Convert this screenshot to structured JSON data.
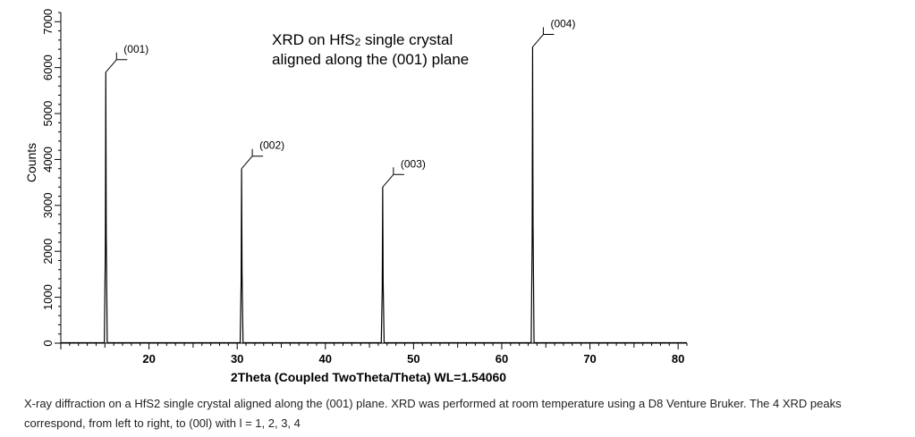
{
  "chart_data": {
    "type": "line",
    "title": "",
    "xlabel": "2Theta (Coupled TwoTheta/Theta) WL=1.54060",
    "ylabel": "Counts",
    "xlim": [
      10,
      81
    ],
    "ylim": [
      0,
      7200
    ],
    "x_ticks": [
      20,
      30,
      40,
      50,
      60,
      70,
      80
    ],
    "y_ticks": [
      0,
      1000,
      2000,
      3000,
      4000,
      5000,
      6000,
      7000
    ],
    "grid": false,
    "annotation_lines": [
      "XRD on HfS",
      "2",
      " single crystal",
      "aligned along the (001) plane"
    ],
    "peaks": [
      {
        "label": "(001)",
        "two_theta": 15.1,
        "counts": 5900
      },
      {
        "label": "(002)",
        "two_theta": 30.5,
        "counts": 3800
      },
      {
        "label": "(003)",
        "two_theta": 46.5,
        "counts": 3400
      },
      {
        "label": "(004)",
        "two_theta": 63.5,
        "counts": 6450
      }
    ],
    "baseline_counts": 10,
    "colors": {
      "trace": "#000000",
      "axis": "#000000"
    }
  },
  "caption": {
    "line1": "X-ray diffraction on a HfS2 single crystal aligned along the (001) plane. XRD was performed at room temperature using a D8 Venture Bruker. The 4 XRD peaks",
    "line2": "correspond, from left to right, to (00l) with l = 1, 2, 3, 4"
  }
}
